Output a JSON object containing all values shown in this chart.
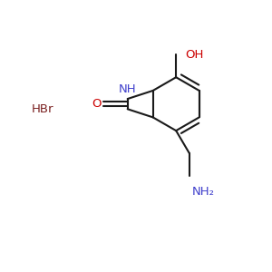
{
  "bg_color": "#ffffff",
  "bond_color": "#1a1a1a",
  "N_color": "#4040cc",
  "O_color": "#cc0000",
  "HBr_color": "#7a2020",
  "line_width": 1.5,
  "HBr_label": "HBr",
  "NH_label": "NH",
  "O_label": "O",
  "OH_label": "OH",
  "NH2_label": "NH₂",
  "figsize": [
    3.0,
    3.0
  ],
  "dpi": 100
}
